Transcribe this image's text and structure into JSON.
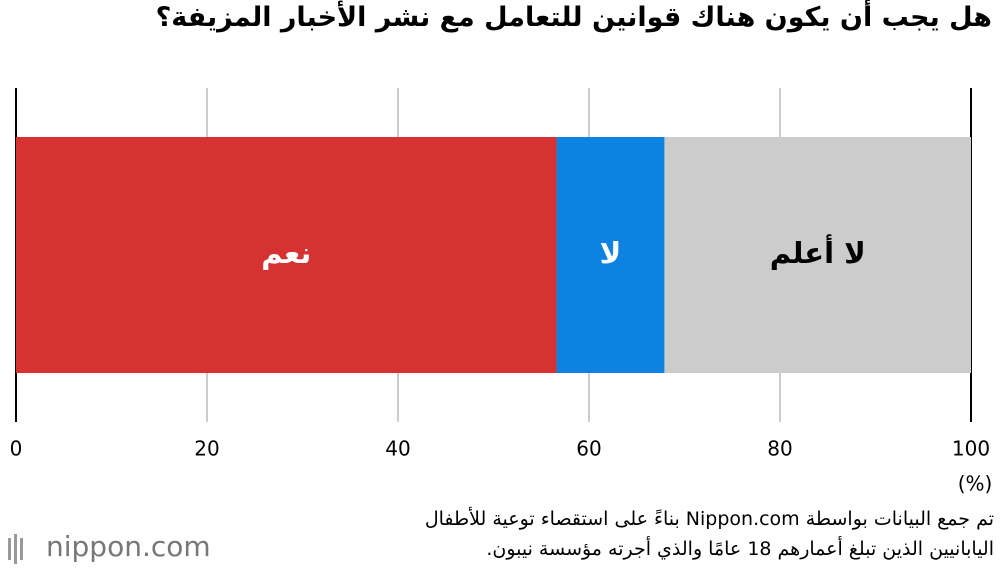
{
  "chart_data": {
    "type": "stacked-bar-horizontal",
    "title": "هل يجب أن يكون هناك قوانين للتعامل مع نشر الأخبار المزيفة؟",
    "series": [
      {
        "name": "نعم",
        "color": "#d63232",
        "label_color": "#ffffff",
        "values": [
          56.6
        ]
      },
      {
        "name": "لا",
        "color": "#0e82e0",
        "label_color": "#ffffff",
        "values": [
          11.3
        ]
      },
      {
        "name": "لا أعلم",
        "color": "#cccccc",
        "label_color": "#000000",
        "values": [
          32.1
        ]
      }
    ],
    "xlim": [
      0,
      100
    ],
    "xticks": [
      0,
      20,
      40,
      60,
      80,
      100
    ],
    "grid": true,
    "unit": "(%)",
    "note": [
      "تم جمع البيانات بواسطة Nippon.com بناءً على استقصاء توعية للأطفال",
      "اليابانيين الذين تبلغ أعمارهم 18 عامًا والذي أجرته مؤسسة نيبون."
    ],
    "logo": "nippon.com"
  }
}
